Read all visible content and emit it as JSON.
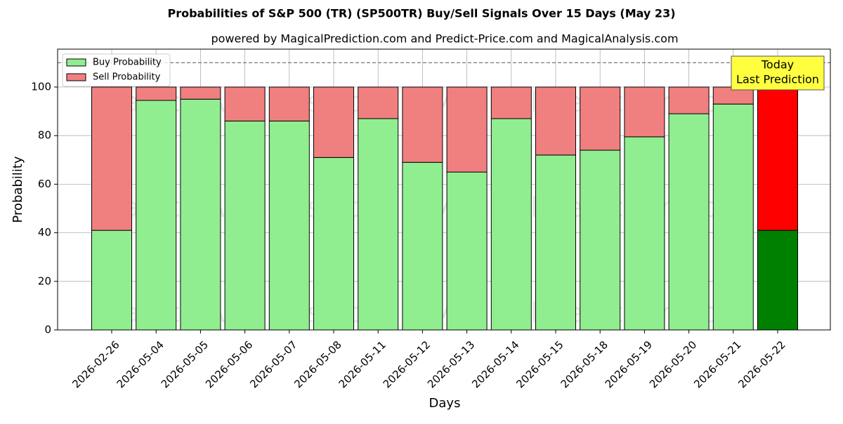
{
  "chart_data": {
    "type": "stacked_bar",
    "title": "Probabilities of S&P 500 (TR) (SP500TR) Buy/Sell Signals Over 15 Days (May 23)",
    "subtitle": "powered by MagicalPrediction.com and Predict-Price.com and MagicalAnalysis.com",
    "xlabel": "Days",
    "ylabel": "Probability",
    "categories": [
      "2026-02-26",
      "2026-05-04",
      "2026-05-05",
      "2026-05-06",
      "2026-05-07",
      "2026-05-08",
      "2026-05-11",
      "2026-05-12",
      "2026-05-13",
      "2026-05-14",
      "2026-05-15",
      "2026-05-18",
      "2026-05-19",
      "2026-05-20",
      "2026-05-21",
      "2026-05-22"
    ],
    "series": [
      {
        "name": "Buy Probability",
        "color": "#90ee90",
        "highlight_color": "#008000",
        "values": [
          41,
          94.5,
          95,
          86,
          86,
          71,
          87,
          69,
          65,
          87,
          72,
          74,
          79.5,
          89,
          93,
          41
        ]
      },
      {
        "name": "Sell Probability",
        "color": "#f08080",
        "highlight_color": "#ff0000",
        "values": [
          59,
          5.5,
          5,
          14,
          14,
          29,
          13,
          31,
          35,
          13,
          28,
          26,
          20.5,
          11,
          7,
          59
        ]
      }
    ],
    "ylim": [
      0,
      115.6
    ],
    "yticks": [
      0,
      20,
      40,
      60,
      80,
      100
    ],
    "grid": true,
    "reference_line": 110,
    "legend": "upper left",
    "annotation": [
      "Today",
      "Last Prediction"
    ],
    "watermarks": [
      "MagicalAnalysis.com",
      "MagicalPrediction.com"
    ]
  }
}
